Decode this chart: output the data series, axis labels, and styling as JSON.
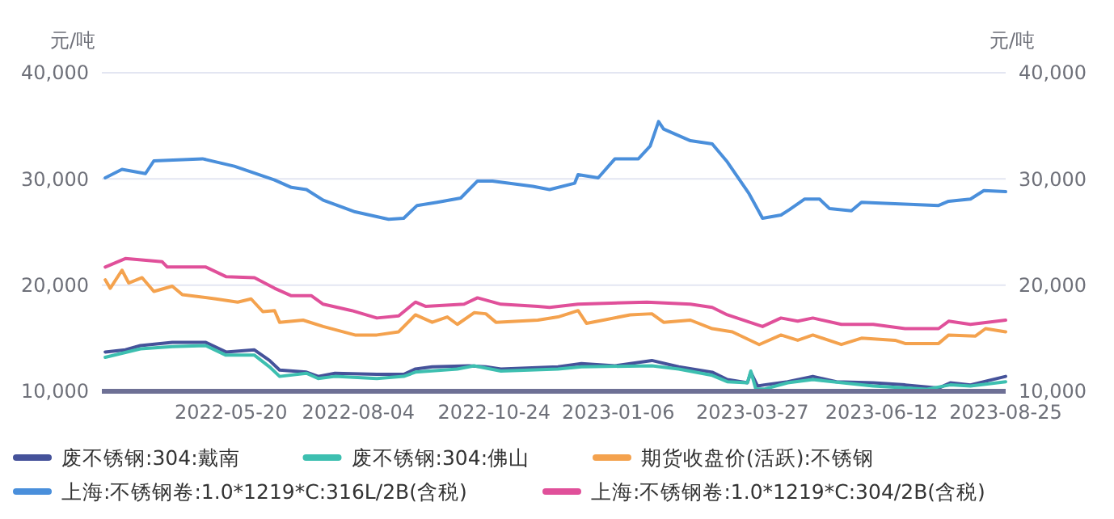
{
  "chart_data": {
    "type": "line",
    "ylabel": "元/吨",
    "y2label": "元/吨",
    "xlim": [
      "2022-03-04",
      "2023-08-25"
    ],
    "xticks": [
      "2022-05-20",
      "2022-08-04",
      "2022-10-24",
      "2023-01-06",
      "2023-03-27",
      "2023-06-12",
      "2023-08-25"
    ],
    "ylim": [
      10000,
      40000
    ],
    "yticks": [
      {
        "value": 10000,
        "label": "10,000"
      },
      {
        "value": 20000,
        "label": "20,000"
      },
      {
        "value": 30000,
        "label": "30,000"
      },
      {
        "value": 40000,
        "label": "40,000"
      }
    ],
    "y2lim": [
      10000,
      40000
    ],
    "y2ticks": [
      {
        "value": 10000,
        "label": "10,000"
      },
      {
        "value": 20000,
        "label": "20,000"
      },
      {
        "value": 30000,
        "label": "30,000"
      },
      {
        "value": 40000,
        "label": "40,000"
      }
    ],
    "grid": "y",
    "legend": "bottom",
    "marker": "none",
    "line_style": "solid",
    "series": [
      {
        "name": "废不锈钢:304:戴南",
        "color": "#45529a",
        "x": [
          "2022-03-06",
          "2022-03-18",
          "2022-03-27",
          "2022-04-15",
          "2022-05-05",
          "2022-05-17",
          "2022-06-03",
          "2022-06-12",
          "2022-06-18",
          "2022-07-04",
          "2022-07-11",
          "2022-07-21",
          "2022-08-15",
          "2022-08-31",
          "2022-09-07",
          "2022-09-17",
          "2022-10-09",
          "2022-10-19",
          "2022-10-28",
          "2022-12-01",
          "2022-12-15",
          "2023-01-04",
          "2023-01-26",
          "2023-02-11",
          "2023-03-03",
          "2023-03-12",
          "2023-03-24",
          "2023-03-26",
          "2023-03-30",
          "2023-04-03",
          "2023-04-17",
          "2023-05-02",
          "2023-05-16",
          "2023-06-07",
          "2023-06-26",
          "2023-07-16",
          "2023-07-23",
          "2023-08-04",
          "2023-08-25"
        ],
        "values": [
          13700,
          13900,
          14300,
          14600,
          14600,
          13700,
          13900,
          12900,
          12000,
          11800,
          11400,
          11700,
          11600,
          11600,
          12100,
          12300,
          12400,
          12300,
          12100,
          12300,
          12600,
          12400,
          12900,
          12300,
          11800,
          11100,
          10800,
          11800,
          10500,
          10600,
          10900,
          11400,
          10900,
          10800,
          10600,
          10300,
          10800,
          10600,
          11400
        ]
      },
      {
        "name": "废不锈钢:304:佛山",
        "color": "#3dbfb0",
        "x": [
          "2022-03-06",
          "2022-03-27",
          "2022-04-15",
          "2022-05-05",
          "2022-05-17",
          "2022-06-03",
          "2022-06-12",
          "2022-06-18",
          "2022-07-04",
          "2022-07-11",
          "2022-07-21",
          "2022-08-15",
          "2022-08-31",
          "2022-09-07",
          "2022-10-02",
          "2022-10-12",
          "2022-10-28",
          "2022-12-01",
          "2022-12-15",
          "2023-01-26",
          "2023-02-11",
          "2023-03-03",
          "2023-03-12",
          "2023-03-24",
          "2023-03-26",
          "2023-03-29",
          "2023-04-03",
          "2023-04-17",
          "2023-05-02",
          "2023-06-07",
          "2023-07-09",
          "2023-07-23",
          "2023-08-04",
          "2023-08-25"
        ],
        "values": [
          13200,
          14000,
          14200,
          14300,
          13400,
          13400,
          12300,
          11400,
          11700,
          11200,
          11400,
          11200,
          11400,
          11800,
          12100,
          12400,
          11900,
          12100,
          12300,
          12400,
          12100,
          11500,
          10900,
          10800,
          11900,
          10200,
          10200,
          10800,
          11100,
          10500,
          10200,
          10600,
          10500,
          10900
        ]
      },
      {
        "name": "期货收盘价(活跃):不锈钢",
        "color": "#f4a24e",
        "x": [
          "2022-03-06",
          "2022-03-09",
          "2022-03-16",
          "2022-03-20",
          "2022-03-28",
          "2022-04-04",
          "2022-04-15",
          "2022-04-21",
          "2022-05-11",
          "2022-05-24",
          "2022-06-01",
          "2022-06-08",
          "2022-06-15",
          "2022-06-18",
          "2022-07-02",
          "2022-07-14",
          "2022-08-02",
          "2022-08-15",
          "2022-08-28",
          "2022-09-07",
          "2022-09-17",
          "2022-09-26",
          "2022-10-02",
          "2022-10-12",
          "2022-10-19",
          "2022-10-25",
          "2022-11-19",
          "2022-12-01",
          "2022-12-09",
          "2022-12-13",
          "2022-12-18",
          "2022-12-28",
          "2023-01-13",
          "2023-01-26",
          "2023-02-02",
          "2023-02-18",
          "2023-03-03",
          "2023-03-15",
          "2023-03-31",
          "2023-04-13",
          "2023-04-23",
          "2023-05-02",
          "2023-05-19",
          "2023-05-31",
          "2023-06-20",
          "2023-06-26",
          "2023-07-16",
          "2023-07-22",
          "2023-08-07",
          "2023-08-13",
          "2023-08-25"
        ],
        "values": [
          20500,
          19700,
          21400,
          20200,
          20700,
          19400,
          19900,
          19100,
          18700,
          18400,
          18700,
          17500,
          17600,
          16500,
          16700,
          16100,
          15300,
          15300,
          15600,
          17200,
          16500,
          17000,
          16300,
          17400,
          17300,
          16500,
          16700,
          17000,
          17400,
          17600,
          16400,
          16700,
          17200,
          17300,
          16500,
          16700,
          15900,
          15600,
          14400,
          15300,
          14800,
          15300,
          14400,
          15000,
          14800,
          14500,
          14500,
          15300,
          15200,
          15900,
          15600
        ]
      },
      {
        "name": "上海:不锈钢卷:1.0*1219*C:316L/2B(含税)",
        "color": "#4a8fdb",
        "x": [
          "2022-03-06",
          "2022-03-16",
          "2022-03-30",
          "2022-04-04",
          "2022-05-03",
          "2022-05-22",
          "2022-06-15",
          "2022-06-25",
          "2022-07-04",
          "2022-07-14",
          "2022-08-02",
          "2022-08-22",
          "2022-08-31",
          "2022-09-08",
          "2022-09-20",
          "2022-10-04",
          "2022-10-14",
          "2022-10-23",
          "2022-11-16",
          "2022-11-26",
          "2022-12-11",
          "2022-12-13",
          "2022-12-25",
          "2023-01-04",
          "2023-01-18",
          "2023-01-25",
          "2023-01-30",
          "2023-02-02",
          "2023-02-18",
          "2023-03-03",
          "2023-03-12",
          "2023-03-25",
          "2023-04-02",
          "2023-04-13",
          "2023-04-18",
          "2023-04-27",
          "2023-05-06",
          "2023-05-12",
          "2023-05-25",
          "2023-05-31",
          "2023-06-14",
          "2023-07-16",
          "2023-07-22",
          "2023-08-04",
          "2023-08-12",
          "2023-08-25"
        ],
        "values": [
          30100,
          30900,
          30500,
          31700,
          31900,
          31200,
          29900,
          29200,
          29000,
          28000,
          26900,
          26200,
          26300,
          27500,
          27800,
          28200,
          29800,
          29800,
          29300,
          29000,
          29600,
          30400,
          30100,
          31900,
          31900,
          33100,
          35400,
          34700,
          33600,
          33300,
          31600,
          28600,
          26300,
          26600,
          27100,
          28100,
          28100,
          27200,
          27000,
          27800,
          27700,
          27500,
          27900,
          28100,
          28900,
          28800
        ]
      },
      {
        "name": "上海:不锈钢卷:1.0*1219*C:304/2B(含税)",
        "color": "#e0509a",
        "x": [
          "2022-03-06",
          "2022-03-18",
          "2022-04-09",
          "2022-04-12",
          "2022-05-05",
          "2022-05-17",
          "2022-06-03",
          "2022-06-15",
          "2022-06-25",
          "2022-07-07",
          "2022-07-14",
          "2022-07-31",
          "2022-08-15",
          "2022-08-28",
          "2022-09-07",
          "2022-09-13",
          "2022-10-06",
          "2022-10-14",
          "2022-10-28",
          "2022-11-19",
          "2022-11-26",
          "2022-12-13",
          "2023-01-23",
          "2023-02-18",
          "2023-03-03",
          "2023-03-12",
          "2023-04-02",
          "2023-04-13",
          "2023-04-23",
          "2023-05-02",
          "2023-05-19",
          "2023-06-07",
          "2023-06-26",
          "2023-07-16",
          "2023-07-22",
          "2023-08-04",
          "2023-08-25"
        ],
        "values": [
          21700,
          22500,
          22200,
          21700,
          21700,
          20800,
          20700,
          19700,
          19000,
          19000,
          18200,
          17600,
          16900,
          17100,
          18400,
          18000,
          18200,
          18800,
          18200,
          18000,
          17900,
          18200,
          18400,
          18200,
          17900,
          17200,
          16100,
          16900,
          16600,
          16900,
          16300,
          16300,
          15900,
          15900,
          16600,
          16300,
          16700
        ]
      }
    ]
  }
}
